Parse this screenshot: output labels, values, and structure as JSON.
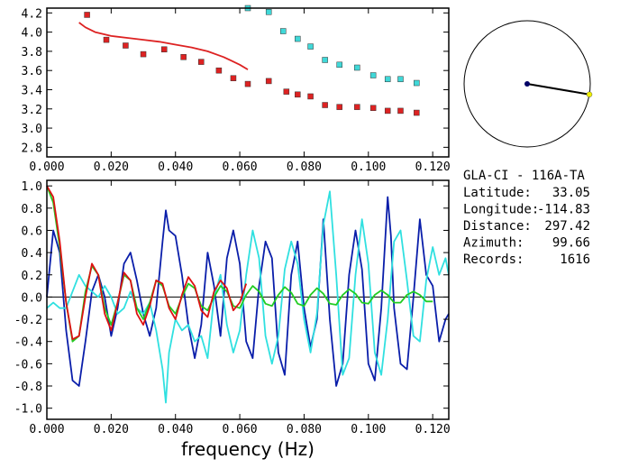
{
  "chart_data": [
    {
      "type": "scatter",
      "xlabel": "",
      "ylabel": "",
      "xlim": [
        0,
        0.125
      ],
      "ylim": [
        2.7,
        4.25
      ],
      "xticks": [
        "0.000",
        "0.020",
        "0.040",
        "0.060",
        "0.080",
        "0.100",
        "0.120"
      ],
      "yticks": [
        "2.8",
        "3.0",
        "3.2",
        "3.4",
        "3.6",
        "3.8",
        "4.0",
        "4.2"
      ],
      "series": [
        {
          "color": "#dd2222",
          "marker": "square",
          "x": [
            0.0125,
            0.0185,
            0.0245,
            0.03,
            0.0365,
            0.0425,
            0.048,
            0.0535,
            0.058,
            0.0625,
            0.069,
            0.0745,
            0.078,
            0.082,
            0.0865,
            0.091,
            0.0965,
            0.1015,
            0.106,
            0.11,
            0.115
          ],
          "y": [
            4.18,
            3.92,
            3.86,
            3.77,
            3.82,
            3.74,
            3.69,
            3.6,
            3.52,
            3.46,
            3.49,
            3.38,
            3.35,
            3.33,
            3.24,
            3.22,
            3.22,
            3.21,
            3.18,
            3.18,
            3.16
          ]
        },
        {
          "color": "#40d8d8",
          "marker": "square",
          "x": [
            0.0625,
            0.069,
            0.0735,
            0.078,
            0.082,
            0.0865,
            0.091,
            0.0965,
            0.1015,
            0.106,
            0.11,
            0.115
          ],
          "y": [
            4.25,
            4.21,
            4.01,
            3.93,
            3.85,
            3.71,
            3.66,
            3.63,
            3.55,
            3.51,
            3.51,
            3.47
          ]
        },
        {
          "color": "#dd2222",
          "marker": "line",
          "x": [
            0.01,
            0.012,
            0.015,
            0.02,
            0.025,
            0.03,
            0.035,
            0.04,
            0.045,
            0.05,
            0.055,
            0.06,
            0.0625
          ],
          "y": [
            4.1,
            4.05,
            4.0,
            3.96,
            3.94,
            3.92,
            3.9,
            3.87,
            3.84,
            3.8,
            3.74,
            3.66,
            3.61
          ]
        }
      ]
    },
    {
      "type": "line",
      "xlabel": "frequency (Hz)",
      "ylabel": "",
      "xlim": [
        0,
        0.125
      ],
      "ylim": [
        -1.1,
        1.05
      ],
      "xticks": [
        "0.000",
        "0.020",
        "0.040",
        "0.060",
        "0.080",
        "0.100",
        "0.120"
      ],
      "yticks": [
        "1.0",
        "0.8",
        "0.6",
        "0.4",
        "0.2",
        "0.0",
        "-0.2",
        "-0.4",
        "-0.6",
        "-0.8",
        "-1.0"
      ],
      "zero_line": true,
      "series": [
        {
          "color": "#0a1eaa",
          "x": [
            0.0,
            0.002,
            0.004,
            0.006,
            0.008,
            0.01,
            0.012,
            0.014,
            0.016,
            0.018,
            0.02,
            0.022,
            0.024,
            0.026,
            0.028,
            0.03,
            0.032,
            0.034,
            0.036,
            0.037,
            0.038,
            0.04,
            0.042,
            0.044,
            0.046,
            0.048,
            0.05,
            0.052,
            0.054,
            0.056,
            0.058,
            0.06,
            0.062,
            0.064,
            0.066,
            0.068,
            0.07,
            0.072,
            0.074,
            0.076,
            0.078,
            0.08,
            0.082,
            0.084,
            0.086,
            0.088,
            0.09,
            0.092,
            0.094,
            0.096,
            0.098,
            0.1,
            0.102,
            0.104,
            0.106,
            0.107,
            0.108,
            0.11,
            0.112,
            0.114,
            0.116,
            0.118,
            0.12,
            0.122,
            0.124,
            0.125
          ],
          "y": [
            0.0,
            0.6,
            0.4,
            -0.3,
            -0.75,
            -0.8,
            -0.4,
            0.05,
            0.2,
            0.0,
            -0.35,
            -0.1,
            0.3,
            0.4,
            0.15,
            -0.15,
            -0.35,
            -0.1,
            0.5,
            0.78,
            0.6,
            0.55,
            0.2,
            -0.25,
            -0.55,
            -0.25,
            0.4,
            0.1,
            -0.35,
            0.35,
            0.6,
            0.3,
            -0.4,
            -0.55,
            0.1,
            0.5,
            0.35,
            -0.5,
            -0.7,
            0.2,
            0.5,
            -0.1,
            -0.45,
            -0.2,
            0.7,
            -0.2,
            -0.8,
            -0.6,
            0.2,
            0.6,
            0.25,
            -0.6,
            -0.75,
            -0.1,
            0.9,
            0.55,
            -0.1,
            -0.6,
            -0.65,
            0.0,
            0.7,
            0.2,
            0.1,
            -0.4,
            -0.2,
            -0.15
          ]
        },
        {
          "color": "#30e0e0",
          "x": [
            0.0,
            0.002,
            0.004,
            0.006,
            0.008,
            0.01,
            0.012,
            0.014,
            0.016,
            0.018,
            0.02,
            0.022,
            0.024,
            0.026,
            0.028,
            0.03,
            0.032,
            0.034,
            0.036,
            0.037,
            0.038,
            0.04,
            0.042,
            0.044,
            0.046,
            0.048,
            0.05,
            0.052,
            0.054,
            0.056,
            0.058,
            0.06,
            0.062,
            0.064,
            0.066,
            0.068,
            0.07,
            0.072,
            0.074,
            0.076,
            0.078,
            0.08,
            0.082,
            0.084,
            0.086,
            0.088,
            0.09,
            0.092,
            0.094,
            0.096,
            0.098,
            0.1,
            0.102,
            0.104,
            0.106,
            0.108,
            0.11,
            0.112,
            0.114,
            0.116,
            0.118,
            0.12,
            0.122,
            0.124,
            0.125
          ],
          "y": [
            -0.1,
            -0.05,
            -0.1,
            -0.1,
            0.05,
            0.2,
            0.1,
            0.05,
            0.0,
            0.1,
            0.0,
            -0.15,
            -0.1,
            0.05,
            -0.1,
            -0.15,
            -0.05,
            -0.3,
            -0.65,
            -0.95,
            -0.5,
            -0.2,
            -0.3,
            -0.25,
            -0.4,
            -0.35,
            -0.55,
            0.0,
            0.2,
            -0.25,
            -0.5,
            -0.3,
            0.2,
            0.6,
            0.35,
            -0.35,
            -0.6,
            -0.35,
            0.25,
            0.5,
            0.3,
            -0.2,
            -0.5,
            -0.15,
            0.65,
            0.95,
            0.2,
            -0.7,
            -0.55,
            0.2,
            0.7,
            0.3,
            -0.5,
            -0.7,
            -0.2,
            0.5,
            0.6,
            0.15,
            -0.35,
            -0.4,
            0.15,
            0.45,
            0.2,
            0.35,
            0.2
          ]
        },
        {
          "color": "#22cc22",
          "x": [
            0.0,
            0.002,
            0.004,
            0.006,
            0.008,
            0.01,
            0.012,
            0.014,
            0.016,
            0.018,
            0.02,
            0.022,
            0.024,
            0.026,
            0.028,
            0.03,
            0.032,
            0.034,
            0.036,
            0.038,
            0.04,
            0.042,
            0.044,
            0.046,
            0.048,
            0.05,
            0.052,
            0.054,
            0.056,
            0.058,
            0.06,
            0.062,
            0.064,
            0.066,
            0.068,
            0.07,
            0.072,
            0.074,
            0.076,
            0.078,
            0.08,
            0.082,
            0.084,
            0.086,
            0.088,
            0.09,
            0.092,
            0.094,
            0.096,
            0.098,
            0.1,
            0.102,
            0.104,
            0.106,
            0.108,
            0.11,
            0.112,
            0.114,
            0.116,
            0.118,
            0.12
          ],
          "y": [
            1.0,
            0.85,
            0.45,
            -0.05,
            -0.4,
            -0.35,
            0.05,
            0.28,
            0.2,
            -0.1,
            -0.25,
            -0.05,
            0.2,
            0.15,
            -0.1,
            -0.2,
            -0.05,
            0.15,
            0.1,
            -0.08,
            -0.15,
            0.0,
            0.12,
            0.08,
            -0.08,
            -0.12,
            0.0,
            0.1,
            0.05,
            -0.08,
            -0.1,
            0.02,
            0.1,
            0.05,
            -0.06,
            -0.08,
            0.02,
            0.09,
            0.04,
            -0.06,
            -0.08,
            0.02,
            0.08,
            0.03,
            -0.06,
            -0.07,
            0.02,
            0.07,
            0.03,
            -0.05,
            -0.06,
            0.02,
            0.06,
            0.02,
            -0.05,
            -0.05,
            0.02,
            0.05,
            0.02,
            -0.04,
            -0.04
          ]
        },
        {
          "color": "#dd1111",
          "x": [
            0.0,
            0.002,
            0.004,
            0.006,
            0.008,
            0.01,
            0.012,
            0.014,
            0.016,
            0.018,
            0.02,
            0.022,
            0.024,
            0.026,
            0.028,
            0.03,
            0.032,
            0.034,
            0.036,
            0.038,
            0.04,
            0.042,
            0.044,
            0.046,
            0.048,
            0.05,
            0.052,
            0.054,
            0.056,
            0.058,
            0.06,
            0.062
          ],
          "y": [
            1.0,
            0.9,
            0.5,
            -0.05,
            -0.38,
            -0.35,
            0.0,
            0.3,
            0.2,
            -0.15,
            -0.3,
            -0.05,
            0.22,
            0.15,
            -0.15,
            -0.25,
            -0.08,
            0.15,
            0.12,
            -0.1,
            -0.2,
            0.02,
            0.18,
            0.1,
            -0.12,
            -0.18,
            0.05,
            0.15,
            0.08,
            -0.12,
            -0.05,
            0.12
          ]
        }
      ]
    },
    {
      "type": "other",
      "description_free": true,
      "azimuth_deg": 99.66,
      "station_color": "#f0f000",
      "source_color": "#000066"
    }
  ],
  "station_info": {
    "name": "GLA-CI  -  116A-TA",
    "rows": [
      {
        "label": "Latitude:",
        "value": "33.05"
      },
      {
        "label": "Longitude:",
        "value": "-114.83"
      },
      {
        "label": "Distance:",
        "value": "297.42"
      },
      {
        "label": "Azimuth:",
        "value": "99.66"
      },
      {
        "label": "Records:",
        "value": "1616"
      }
    ]
  }
}
